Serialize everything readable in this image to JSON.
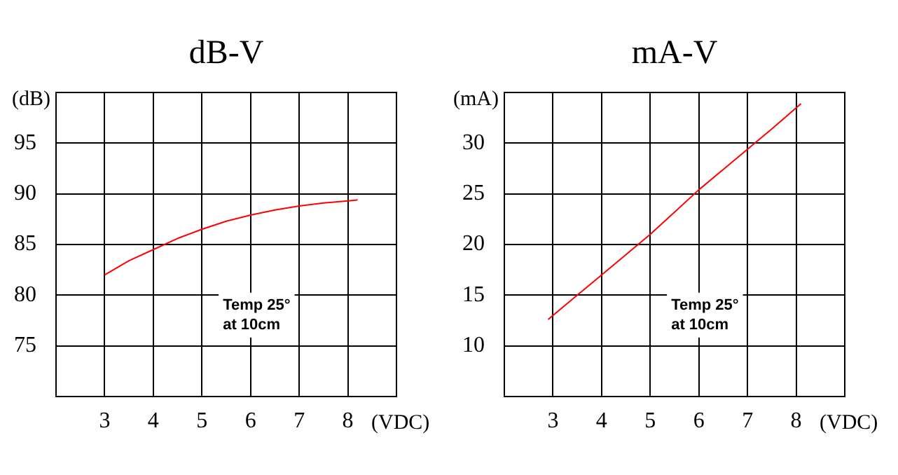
{
  "chart_data": [
    {
      "type": "line",
      "title": "dB-V",
      "xlabel": "(VDC)",
      "ylabel": "(dB)",
      "x": [
        3,
        3.5,
        4,
        4.5,
        5,
        5.5,
        6,
        6.5,
        7,
        7.5,
        8,
        8.2
      ],
      "values": [
        82,
        83.4,
        84.5,
        85.6,
        86.5,
        87.3,
        87.9,
        88.4,
        88.8,
        89.1,
        89.3,
        89.4
      ],
      "color": "#ff0000",
      "marker": "none",
      "xlim": [
        2,
        9
      ],
      "ylim": [
        70,
        100
      ],
      "xticks": [
        3,
        4,
        5,
        6,
        7,
        8
      ],
      "yticks": [
        75,
        80,
        85,
        90,
        95
      ],
      "grid": true,
      "annotations": [
        "Temp 25°\nat 10cm"
      ]
    },
    {
      "type": "line",
      "title": "mA-V",
      "xlabel": "(VDC)",
      "ylabel": "(mA)",
      "x": [
        2.9,
        3.5,
        4,
        4.5,
        5,
        5.5,
        6,
        6.5,
        7,
        7.5,
        8.1
      ],
      "values": [
        12.6,
        15,
        17,
        19,
        21,
        23.2,
        25.4,
        27.4,
        29.4,
        31.4,
        33.9
      ],
      "color": "#ff0000",
      "marker": "none",
      "xlim": [
        2,
        9
      ],
      "ylim": [
        5,
        35
      ],
      "xticks": [
        3,
        4,
        5,
        6,
        7,
        8
      ],
      "yticks": [
        10,
        15,
        20,
        25,
        30
      ],
      "grid": true,
      "annotations": [
        "Temp 25°\nat 10cm"
      ]
    }
  ]
}
